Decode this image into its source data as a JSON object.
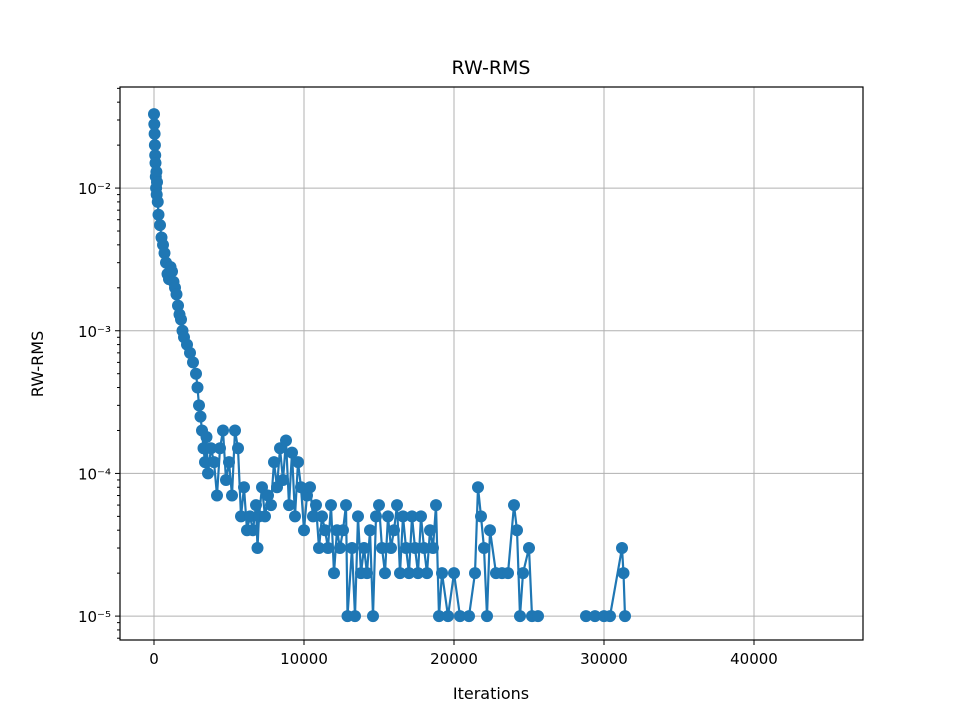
{
  "chart_data": {
    "type": "line",
    "title": "RW-RMS",
    "x_label": "Iterations",
    "y_label": "RW-RMS",
    "yscale": "log",
    "grid": true,
    "color": "#1f77b4",
    "marker": "o",
    "xlim": [
      -2267,
      47267
    ],
    "xticks": [
      0,
      10000,
      20000,
      30000,
      40000
    ],
    "ylim": [
      6.8e-06,
      0.0511
    ],
    "yticks": [
      {
        "value": 1e-05,
        "label": "10⁻⁵"
      },
      {
        "value": 0.0001,
        "label": "10⁻⁴"
      },
      {
        "value": 0.001,
        "label": "10⁻³"
      },
      {
        "value": 0.01,
        "label": "10⁻²"
      }
    ],
    "yminorticks": [
      7e-06,
      8e-06,
      9e-06,
      2e-05,
      3e-05,
      4e-05,
      5e-05,
      6e-05,
      7e-05,
      8e-05,
      9e-05,
      0.0002,
      0.0003,
      0.0004,
      0.0005,
      0.0006,
      0.0007,
      0.0008,
      0.0009,
      0.002,
      0.003,
      0.004,
      0.005,
      0.006,
      0.007,
      0.008,
      0.009,
      0.02,
      0.03,
      0.04,
      0.05
    ],
    "x": [
      0,
      20,
      40,
      60,
      80,
      100,
      120,
      140,
      160,
      180,
      200,
      250,
      300,
      400,
      500,
      600,
      700,
      800,
      900,
      1000,
      1100,
      1200,
      1300,
      1400,
      1500,
      1600,
      1700,
      1800,
      1900,
      2000,
      2200,
      2400,
      2600,
      2800,
      2900,
      3000,
      3100,
      3200,
      3300,
      3400,
      3500,
      3600,
      3800,
      4000,
      4200,
      4400,
      4600,
      4800,
      5000,
      5200,
      5400,
      5600,
      5800,
      6000,
      6200,
      6400,
      6600,
      6800,
      6900,
      7000,
      7200,
      7400,
      7600,
      7800,
      8000,
      8200,
      8400,
      8600,
      8800,
      9000,
      9200,
      9400,
      9600,
      9800,
      10000,
      10200,
      10400,
      10600,
      10800,
      11000,
      11200,
      11400,
      11600,
      11800,
      12000,
      12200,
      12400,
      12600,
      12800,
      12900,
      13200,
      13400,
      13600,
      13800,
      14000,
      14200,
      14400,
      14600,
      14800,
      15000,
      15200,
      15400,
      15600,
      15800,
      16000,
      16200,
      16400,
      16600,
      16800,
      17000,
      17200,
      17400,
      17600,
      17800,
      18000,
      18200,
      18400,
      18600,
      18800,
      19000,
      19200,
      19600,
      20000,
      20400,
      21000,
      21400,
      21600,
      21800,
      22000,
      22200,
      22400,
      22800,
      23200,
      23600,
      24000,
      24200,
      24400,
      24600,
      25000,
      25200,
      25600,
      27000,
      28800,
      29400,
      30000,
      30400,
      31200,
      31300,
      31400
    ],
    "values": [
      0.033,
      0.028,
      0.024,
      0.02,
      0.017,
      0.015,
      0.012,
      0.01,
      0.013,
      0.009,
      0.011,
      0.008,
      0.0065,
      0.0055,
      0.0045,
      0.004,
      0.0035,
      0.003,
      0.0025,
      0.0023,
      0.0028,
      0.0026,
      0.0022,
      0.002,
      0.0018,
      0.0015,
      0.0013,
      0.0012,
      0.001,
      0.0009,
      0.0008,
      0.0007,
      0.0006,
      0.0005,
      0.0004,
      0.0003,
      0.00025,
      0.0002,
      0.00015,
      0.00012,
      0.00018,
      0.0001,
      0.00015,
      0.00012,
      7e-05,
      0.00015,
      0.0002,
      9e-05,
      0.00012,
      7e-05,
      0.0002,
      0.00015,
      5e-05,
      8e-05,
      4e-05,
      5e-05,
      4e-05,
      6e-05,
      3e-05,
      5e-05,
      8e-05,
      5e-05,
      7e-05,
      6e-05,
      0.00012,
      8e-05,
      0.00015,
      9e-05,
      0.00017,
      6e-05,
      0.00014,
      5e-05,
      0.00012,
      8e-05,
      4e-05,
      7e-05,
      8e-05,
      5e-05,
      6e-05,
      3e-05,
      5e-05,
      4e-05,
      3e-05,
      6e-05,
      2e-05,
      4e-05,
      3e-05,
      4e-05,
      6e-05,
      1e-05,
      3e-05,
      1e-05,
      5e-05,
      2e-05,
      3e-05,
      2e-05,
      4e-05,
      1e-05,
      5e-05,
      6e-05,
      3e-05,
      2e-05,
      5e-05,
      3e-05,
      4e-05,
      6e-05,
      2e-05,
      5e-05,
      3e-05,
      2e-05,
      5e-05,
      3e-05,
      2e-05,
      5e-05,
      3e-05,
      2e-05,
      4e-05,
      3e-05,
      6e-05,
      1e-05,
      2e-05,
      1e-05,
      2e-05,
      1e-05,
      1e-05,
      2e-05,
      8e-05,
      5e-05,
      3e-05,
      1e-05,
      4e-05,
      2e-05,
      2e-05,
      2e-05,
      6e-05,
      4e-05,
      1e-05,
      2e-05,
      3e-05,
      1e-05,
      1e-05,
      null,
      1e-05,
      1e-05,
      1e-05,
      1e-05,
      3e-05,
      2e-05,
      1e-05
    ]
  }
}
